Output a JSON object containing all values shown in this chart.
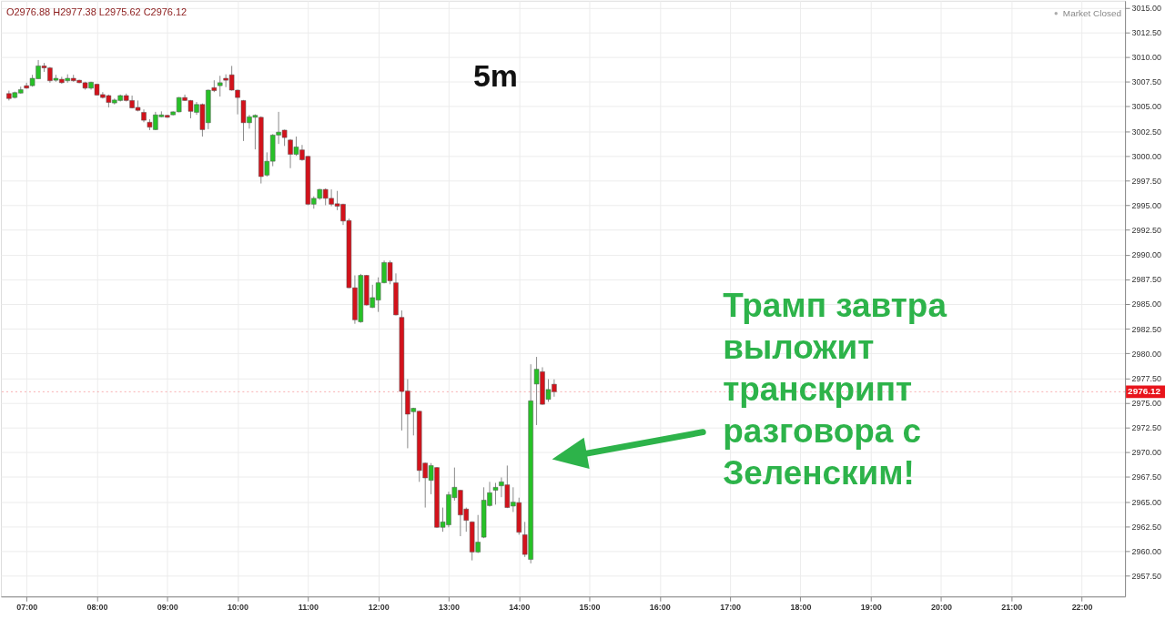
{
  "chart_data": {
    "type": "candlestick",
    "title": "5m",
    "x": [
      6.75,
      6.833,
      6.917,
      7,
      7.083,
      7.167,
      7.25,
      7.333,
      7.417,
      7.5,
      7.583,
      7.667,
      7.75,
      7.833,
      7.917,
      8,
      8.083,
      8.167,
      8.25,
      8.333,
      8.417,
      8.5,
      8.583,
      8.667,
      8.75,
      8.833,
      8.917,
      9,
      9.083,
      9.167,
      9.25,
      9.333,
      9.417,
      9.5,
      9.583,
      9.667,
      9.75,
      9.833,
      9.917,
      10,
      10.083,
      10.167,
      10.25,
      10.333,
      10.417,
      10.5,
      10.583,
      10.667,
      10.75,
      10.833,
      10.917,
      11,
      11.083,
      11.167,
      11.25,
      11.333,
      11.417,
      11.5,
      11.583,
      11.667,
      11.75,
      11.833,
      11.917,
      12,
      12.083,
      12.167,
      12.25,
      12.333,
      12.417,
      12.5,
      12.583,
      12.667,
      12.75,
      12.833,
      12.917,
      13,
      13.083,
      13.167,
      13.25,
      13.333,
      13.417,
      13.5,
      13.583,
      13.667,
      13.75,
      13.833,
      13.917,
      14,
      14.083,
      14.167,
      14.25,
      14.333,
      14.417,
      14.5
    ],
    "ohlc": [
      [
        3006.3,
        3006.6,
        3005.6,
        3005.8
      ],
      [
        3005.9,
        3006.5,
        3005.8,
        3006.4
      ],
      [
        3006.35,
        3007.0,
        3006.3,
        3006.7
      ],
      [
        3007.1,
        3007.4,
        3006.8,
        3006.85
      ],
      [
        3007.1,
        3008.2,
        3007.0,
        3007.85
      ],
      [
        3007.8,
        3009.7,
        3007.8,
        3009.1
      ],
      [
        3009.1,
        3009.4,
        3008.5,
        3008.9
      ],
      [
        3008.9,
        3009.0,
        3007.4,
        3007.6
      ],
      [
        3007.65,
        3008.2,
        3007.5,
        3007.85
      ],
      [
        3007.75,
        3008.0,
        3007.3,
        3007.4
      ],
      [
        3007.6,
        3008.25,
        3007.4,
        3007.85
      ],
      [
        3007.85,
        3008.2,
        3007.5,
        3007.6
      ],
      [
        3007.65,
        3007.7,
        3007.35,
        3007.4
      ],
      [
        3007.4,
        3007.5,
        3006.7,
        3006.85
      ],
      [
        3006.85,
        3007.5,
        3006.7,
        3007.45
      ],
      [
        3007.25,
        3007.3,
        3006.1,
        3006.15
      ],
      [
        3006.2,
        3006.45,
        3005.8,
        3005.9
      ],
      [
        3006.1,
        3006.2,
        3004.9,
        3005.4
      ],
      [
        3005.35,
        3005.8,
        3005.2,
        3005.65
      ],
      [
        3005.6,
        3006.2,
        3005.5,
        3006.1
      ],
      [
        3006.1,
        3006.3,
        3005.5,
        3005.6
      ],
      [
        3005.6,
        3006.1,
        3004.8,
        3004.85
      ],
      [
        3004.9,
        3005.6,
        3004.5,
        3004.6
      ],
      [
        3004.4,
        3004.7,
        3003.4,
        3003.6
      ],
      [
        3003.4,
        3003.7,
        3002.6,
        3002.9
      ],
      [
        3002.65,
        3004.45,
        3002.6,
        3004.15
      ],
      [
        3003.95,
        3004.5,
        3003.9,
        3004.15
      ],
      [
        3004.1,
        3004.15,
        3003.85,
        3003.9
      ],
      [
        3004.15,
        3004.5,
        3004.1,
        3004.45
      ],
      [
        3004.45,
        3005.95,
        3004.4,
        3005.9
      ],
      [
        3005.9,
        3006.2,
        3005.55,
        3005.6
      ],
      [
        3005.6,
        3005.65,
        3003.8,
        3004.5
      ],
      [
        3004.4,
        3005.45,
        3004.15,
        3005.2
      ],
      [
        3005.2,
        3005.3,
        3001.95,
        3002.65
      ],
      [
        3003.35,
        3006.7,
        3002.7,
        3006.65
      ],
      [
        3006.9,
        3007.65,
        3006.45,
        3006.6
      ],
      [
        3007.1,
        3008.1,
        3006.0,
        3007.4
      ],
      [
        3007.85,
        3008.25,
        3006.95,
        3007.65
      ],
      [
        3008.2,
        3009.1,
        3006.6,
        3006.65
      ],
      [
        3006.65,
        3006.7,
        3004.2,
        3005.9
      ],
      [
        3005.6,
        3005.65,
        3001.5,
        3003.35
      ],
      [
        3003.35,
        3004.15,
        3002.75,
        3003.95
      ],
      [
        3003.9,
        3004.2,
        3000.65,
        3004.1
      ],
      [
        3003.9,
        3004.0,
        2997.2,
        2997.9
      ],
      [
        2998.05,
        3000.35,
        2997.9,
        2999.45
      ],
      [
        2999.45,
        3002.2,
        2998.95,
        3002.1
      ],
      [
        3002.1,
        3004.45,
        3001.2,
        3002.4
      ],
      [
        3002.6,
        3002.65,
        3001.0,
        3001.85
      ],
      [
        3001.6,
        3001.7,
        2998.75,
        3000.15
      ],
      [
        3000.15,
        3001.95,
        3000.0,
        3000.9
      ],
      [
        3000.6,
        3001.1,
        2999.5,
        2999.6
      ],
      [
        2999.95,
        3000.0,
        2995.0,
        2995.1
      ],
      [
        2995.1,
        2995.9,
        2994.65,
        2995.7
      ],
      [
        2995.7,
        2996.65,
        2995.55,
        2996.6
      ],
      [
        2996.6,
        2996.7,
        2995.0,
        2995.7
      ],
      [
        2995.7,
        2996.6,
        2994.9,
        2995.1
      ],
      [
        2995.15,
        2996.45,
        2994.5,
        2994.9
      ],
      [
        2995.1,
        2995.15,
        2993.0,
        2993.4
      ],
      [
        2993.45,
        2993.65,
        2986.6,
        2986.65
      ],
      [
        2986.65,
        2987.9,
        2983.0,
        2983.4
      ],
      [
        2983.2,
        2988.05,
        2983.1,
        2987.9
      ],
      [
        2987.9,
        2987.95,
        2984.85,
        2984.9
      ],
      [
        2984.65,
        2986.95,
        2984.6,
        2985.65
      ],
      [
        2985.4,
        2987.7,
        2984.2,
        2987.15
      ],
      [
        2987.15,
        2989.4,
        2987.1,
        2989.2
      ],
      [
        2989.2,
        2989.4,
        2987.0,
        2987.35
      ],
      [
        2987.15,
        2988.1,
        2983.85,
        2983.9
      ],
      [
        2983.65,
        2984.35,
        2972.2,
        2976.15
      ],
      [
        2976.2,
        2977.4,
        2970.4,
        2973.85
      ],
      [
        2974.1,
        2974.5,
        2971.7,
        2974.45
      ],
      [
        2974.15,
        2974.2,
        2967.0,
        2968.15
      ],
      [
        2968.9,
        2968.95,
        2964.4,
        2967.4
      ],
      [
        2967.15,
        2968.9,
        2965.75,
        2968.65
      ],
      [
        2968.45,
        2968.5,
        2962.35,
        2962.4
      ],
      [
        2962.4,
        2964.4,
        2961.95,
        2962.95
      ],
      [
        2962.65,
        2966.0,
        2962.4,
        2965.7
      ],
      [
        2965.4,
        2968.45,
        2965.1,
        2966.45
      ],
      [
        2966.15,
        2966.2,
        2961.5,
        2963.65
      ],
      [
        2964.25,
        2964.4,
        2961.95,
        2963.1
      ],
      [
        2962.95,
        2963.0,
        2959.05,
        2959.9
      ],
      [
        2959.9,
        2963.65,
        2959.8,
        2960.9
      ],
      [
        2961.4,
        2966.45,
        2961.3,
        2965.15
      ],
      [
        2964.6,
        2967.0,
        2964.5,
        2965.9
      ],
      [
        2966.15,
        2966.9,
        2964.7,
        2966.45
      ],
      [
        2966.6,
        2967.45,
        2965.45,
        2967.0
      ],
      [
        2966.7,
        2968.65,
        2964.35,
        2964.4
      ],
      [
        2964.55,
        2966.45,
        2963.95,
        2964.95
      ],
      [
        2964.9,
        2965.4,
        2961.65,
        2961.9
      ],
      [
        2961.65,
        2962.95,
        2959.4,
        2959.65
      ],
      [
        2959.15,
        2978.9,
        2958.75,
        2975.2
      ],
      [
        2976.9,
        2979.65,
        2972.75,
        2978.4
      ],
      [
        2978.15,
        2978.6,
        2974.8,
        2974.85
      ],
      [
        2975.35,
        2977.4,
        2975.1,
        2976.35
      ],
      [
        2976.88,
        2977.38,
        2975.62,
        2976.12
      ]
    ],
    "colors": [
      "#d3121b",
      "#27c127",
      "#27c127",
      "#d3121b",
      "#27c127",
      "#27c127",
      "#d3121b",
      "#d3121b",
      "#27c127",
      "#d3121b",
      "#27c127",
      "#d3121b",
      "#d3121b",
      "#d3121b",
      "#27c127",
      "#d3121b",
      "#d3121b",
      "#d3121b",
      "#27c127",
      "#27c127",
      "#d3121b",
      "#d3121b",
      "#d3121b",
      "#d3121b",
      "#d3121b",
      "#27c127",
      "#27c127",
      "#d3121b",
      "#27c127",
      "#27c127",
      "#d3121b",
      "#d3121b",
      "#27c127",
      "#d3121b",
      "#27c127",
      "#d3121b",
      "#27c127",
      "#d3121b",
      "#d3121b",
      "#d3121b",
      "#d3121b",
      "#27c127",
      "#27c127",
      "#d3121b",
      "#27c127",
      "#27c127",
      "#27c127",
      "#d3121b",
      "#d3121b",
      "#27c127",
      "#d3121b",
      "#d3121b",
      "#27c127",
      "#27c127",
      "#d3121b",
      "#d3121b",
      "#d3121b",
      "#d3121b",
      "#d3121b",
      "#d3121b",
      "#27c127",
      "#d3121b",
      "#27c127",
      "#27c127",
      "#27c127",
      "#d3121b",
      "#d3121b",
      "#d3121b",
      "#d3121b",
      "#27c127",
      "#d3121b",
      "#d3121b",
      "#27c127",
      "#d3121b",
      "#27c127",
      "#27c127",
      "#27c127",
      "#d3121b",
      "#d3121b",
      "#d3121b",
      "#27c127",
      "#27c127",
      "#27c127",
      "#27c127",
      "#27c127",
      "#d3121b",
      "#27c127",
      "#d3121b",
      "#d3121b",
      "#27c127",
      "#27c127",
      "#d3121b",
      "#27c127",
      "#d3121b"
    ],
    "xlim": [
      6.7,
      22.55
    ],
    "xticks": [
      {
        "value": 7,
        "label": "07:00"
      },
      {
        "value": 8,
        "label": "08:00"
      },
      {
        "value": 9,
        "label": "09:00"
      },
      {
        "value": 10,
        "label": "10:00"
      },
      {
        "value": 11,
        "label": "11:00"
      },
      {
        "value": 12,
        "label": "12:00"
      },
      {
        "value": 13,
        "label": "13:00"
      },
      {
        "value": 14,
        "label": "14:00"
      },
      {
        "value": 15,
        "label": "15:00"
      },
      {
        "value": 16,
        "label": "16:00"
      },
      {
        "value": 17,
        "label": "17:00"
      },
      {
        "value": 18,
        "label": "18:00"
      },
      {
        "value": 19,
        "label": "19:00"
      },
      {
        "value": 20,
        "label": "20:00"
      },
      {
        "value": 21,
        "label": "21:00"
      },
      {
        "value": 22,
        "label": "22:00"
      }
    ],
    "ylim": [
      2955.4,
      3015.7
    ],
    "yticks": [
      {
        "value": 2957.5,
        "label": "2957.50"
      },
      {
        "value": 2960,
        "label": "2960.00"
      },
      {
        "value": 2962.5,
        "label": "2962.50"
      },
      {
        "value": 2965,
        "label": "2965.00"
      },
      {
        "value": 2967.5,
        "label": "2967.50"
      },
      {
        "value": 2970,
        "label": "2970.00"
      },
      {
        "value": 2972.5,
        "label": "2972.50"
      },
      {
        "value": 2975,
        "label": "2975.00"
      },
      {
        "value": 2977.5,
        "label": "2977.50"
      },
      {
        "value": 2980,
        "label": "2980.00"
      },
      {
        "value": 2982.5,
        "label": "2982.50"
      },
      {
        "value": 2985,
        "label": "2985.00"
      },
      {
        "value": 2987.5,
        "label": "2987.50"
      },
      {
        "value": 2990,
        "label": "2990.00"
      },
      {
        "value": 2992.5,
        "label": "2992.50"
      },
      {
        "value": 2995,
        "label": "2995.00"
      },
      {
        "value": 2997.5,
        "label": "2997.50"
      },
      {
        "value": 3000,
        "label": "3000.00"
      },
      {
        "value": 3002.5,
        "label": "3002.50"
      },
      {
        "value": 3005,
        "label": "3005.00"
      },
      {
        "value": 3007.5,
        "label": "3007.50"
      },
      {
        "value": 3010,
        "label": "3010.00"
      },
      {
        "value": 3012.5,
        "label": "3012.50"
      },
      {
        "value": 3015,
        "label": "3015.00"
      }
    ],
    "ref_lines": [
      {
        "axis": "y",
        "value": 2976.12,
        "label": "2976.12",
        "color": "#e8141b"
      }
    ],
    "annotations": [
      "O2976.88 H2977.38 L2975.62 C2976.12",
      "Market Closed",
      "Трамп завтра выложит транскрипт разговора с Зеленским!"
    ],
    "grid": true
  }
}
